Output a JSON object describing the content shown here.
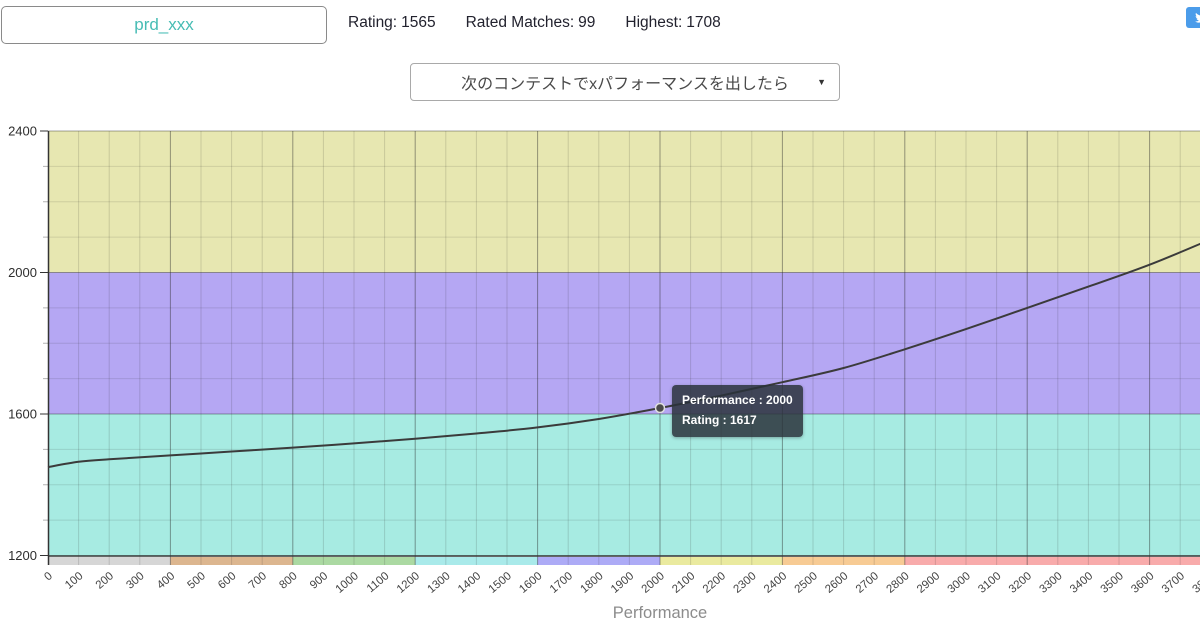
{
  "header": {
    "username": "prd_xxx",
    "accent_color": "#47bcb4",
    "tweet_button_color": "#4b9cea",
    "stats": [
      {
        "label": "Rating:",
        "value": "1565"
      },
      {
        "label": "Rated Matches:",
        "value": "99"
      },
      {
        "label": "Highest:",
        "value": "1708"
      }
    ]
  },
  "controls": {
    "mode_select": "次のコンテストでxパフォーマンスを出したら",
    "arrow": "▼"
  },
  "tooltip": {
    "title": "Performance : 2000",
    "value": "Rating : 1617"
  },
  "chart_data": {
    "type": "line",
    "title": "",
    "xlabel": "Performance",
    "ylabel": "",
    "xlim": [
      0,
      3800
    ],
    "ylim": [
      1200,
      2400
    ],
    "x_tick_step": 100,
    "x_major_every": 400,
    "y_tick_step_minor": 100,
    "y_ticks_labeled": [
      1200,
      1600,
      2000,
      2400
    ],
    "grid": true,
    "legend_position": "none",
    "line_color": "#3b3b3b",
    "series": [
      {
        "name": "Rating",
        "x": [
          0,
          100,
          200,
          400,
          600,
          800,
          1000,
          1200,
          1400,
          1600,
          1800,
          2000,
          2200,
          2400,
          2600,
          2800,
          3000,
          3200,
          3400,
          3600,
          3790
        ],
        "values": [
          1450,
          1465,
          1472,
          1483,
          1494,
          1505,
          1517,
          1530,
          1545,
          1562,
          1586,
          1617,
          1652,
          1690,
          1730,
          1783,
          1840,
          1900,
          1960,
          2022,
          2090
        ]
      }
    ],
    "highlight_point": {
      "x": 2000,
      "y": 1617
    },
    "bands": [
      {
        "from": 1200,
        "to": 1600,
        "color": "#a7ebe2"
      },
      {
        "from": 1600,
        "to": 2000,
        "color": "#b5a7f3"
      },
      {
        "from": 2000,
        "to": 2400,
        "color": "#e7e7b1"
      }
    ],
    "strip": [
      {
        "from": 0,
        "to": 400,
        "color": "#d6d6d6"
      },
      {
        "from": 400,
        "to": 800,
        "color": "#dcb68f"
      },
      {
        "from": 800,
        "to": 1200,
        "color": "#abd9a2"
      },
      {
        "from": 1200,
        "to": 1600,
        "color": "#a9eaea"
      },
      {
        "from": 1600,
        "to": 2000,
        "color": "#adabf6"
      },
      {
        "from": 2000,
        "to": 2400,
        "color": "#eaea9f"
      },
      {
        "from": 2400,
        "to": 2800,
        "color": "#f7cb94"
      },
      {
        "from": 2800,
        "to": 3800,
        "color": "#f8abab"
      }
    ]
  }
}
